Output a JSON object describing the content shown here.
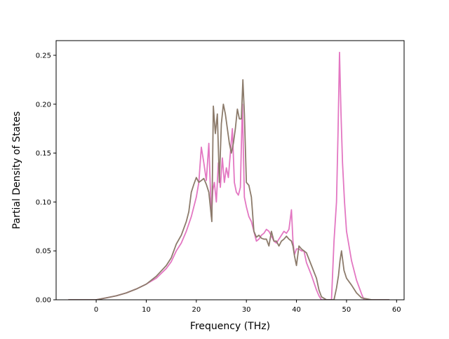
{
  "chart_data": {
    "type": "line",
    "title": "",
    "xlabel": "Frequency (THz)",
    "ylabel": "Partial Density of States",
    "xlim": [
      -8.0,
      61.5
    ],
    "ylim": [
      0.0,
      0.265
    ],
    "xticks": [
      0,
      10,
      20,
      30,
      40,
      50,
      60
    ],
    "yticks": [
      0.0,
      0.05,
      0.1,
      0.15,
      0.2,
      0.25
    ],
    "xtick_labels": [
      "0",
      "10",
      "20",
      "30",
      "40",
      "50",
      "60"
    ],
    "ytick_labels": [
      "0.00",
      "0.05",
      "0.10",
      "0.15",
      "0.20",
      "0.25"
    ],
    "grid": false,
    "legend": "none",
    "series": [
      {
        "color": "#e377c2",
        "x": [
          -5.5,
          0,
          2,
          4,
          6,
          8,
          10,
          12,
          14,
          15,
          16,
          17,
          18,
          19,
          20,
          20.5,
          21,
          21.5,
          22,
          22.5,
          23,
          23.3,
          23.6,
          24,
          24.4,
          24.8,
          25.2,
          25.6,
          26,
          26.4,
          26.8,
          27.2,
          27.6,
          28,
          28.4,
          28.8,
          29.2,
          29.6,
          30,
          30.5,
          31,
          31.5,
          32,
          32.5,
          33,
          33.5,
          34,
          34.5,
          35,
          35.5,
          36,
          36.5,
          37,
          37.5,
          38,
          38.5,
          39,
          39.3,
          39.6,
          40,
          40.5,
          41,
          41.5,
          42,
          43,
          44,
          44.5,
          45,
          46,
          47,
          47.5,
          48,
          48.3,
          48.6,
          48.9,
          49.2,
          49.6,
          50,
          51,
          52,
          53,
          53.5,
          55,
          58.5
        ],
        "y": [
          0.0,
          0.0,
          0.002,
          0.004,
          0.007,
          0.011,
          0.016,
          0.022,
          0.032,
          0.039,
          0.05,
          0.058,
          0.07,
          0.085,
          0.105,
          0.12,
          0.156,
          0.14,
          0.122,
          0.16,
          0.085,
          0.112,
          0.12,
          0.1,
          0.14,
          0.115,
          0.145,
          0.12,
          0.135,
          0.125,
          0.15,
          0.175,
          0.12,
          0.11,
          0.107,
          0.115,
          0.2,
          0.105,
          0.095,
          0.085,
          0.08,
          0.07,
          0.06,
          0.062,
          0.066,
          0.068,
          0.072,
          0.07,
          0.065,
          0.06,
          0.058,
          0.062,
          0.066,
          0.07,
          0.068,
          0.072,
          0.092,
          0.06,
          0.046,
          0.052,
          0.052,
          0.05,
          0.05,
          0.038,
          0.025,
          0.01,
          0.004,
          0.0,
          0.0,
          0.0,
          0.06,
          0.1,
          0.17,
          0.253,
          0.19,
          0.14,
          0.1,
          0.07,
          0.04,
          0.02,
          0.006,
          0.0,
          0.0,
          0.0
        ]
      },
      {
        "color": "#8c7b6b",
        "x": [
          -5.5,
          0,
          2,
          4,
          6,
          8,
          10,
          12,
          14,
          15,
          16,
          17,
          18,
          18.5,
          19,
          19.5,
          20,
          20.5,
          21,
          21.5,
          22,
          22.5,
          22.8,
          23.1,
          23.4,
          23.8,
          24.2,
          24.6,
          25,
          25.4,
          25.8,
          26.2,
          26.6,
          27,
          27.4,
          27.8,
          28.2,
          28.6,
          29,
          29.3,
          29.6,
          30,
          30.5,
          31,
          31.5,
          32,
          32.5,
          33,
          33.5,
          34,
          34.5,
          35,
          35.5,
          36,
          36.5,
          37,
          37.5,
          38,
          38.5,
          39,
          39.3,
          39.6,
          40,
          40.5,
          41,
          41.5,
          42,
          43,
          44,
          44.5,
          45,
          46,
          47,
          47.5,
          48,
          48.4,
          48.7,
          49,
          49.5,
          50,
          51,
          52,
          53,
          55,
          58.5
        ],
        "y": [
          0.0,
          0.0,
          0.002,
          0.004,
          0.007,
          0.011,
          0.016,
          0.024,
          0.035,
          0.043,
          0.057,
          0.066,
          0.08,
          0.09,
          0.11,
          0.118,
          0.125,
          0.12,
          0.122,
          0.124,
          0.118,
          0.11,
          0.095,
          0.08,
          0.198,
          0.17,
          0.19,
          0.12,
          0.18,
          0.2,
          0.19,
          0.175,
          0.16,
          0.15,
          0.16,
          0.175,
          0.195,
          0.185,
          0.185,
          0.225,
          0.19,
          0.12,
          0.117,
          0.105,
          0.07,
          0.064,
          0.066,
          0.063,
          0.062,
          0.062,
          0.055,
          0.07,
          0.06,
          0.06,
          0.055,
          0.06,
          0.062,
          0.065,
          0.062,
          0.06,
          0.055,
          0.045,
          0.035,
          0.055,
          0.052,
          0.05,
          0.048,
          0.035,
          0.022,
          0.01,
          0.003,
          0.0,
          0.0,
          0.0,
          0.012,
          0.025,
          0.04,
          0.05,
          0.03,
          0.022,
          0.015,
          0.007,
          0.002,
          0.0,
          0.0
        ]
      }
    ]
  }
}
